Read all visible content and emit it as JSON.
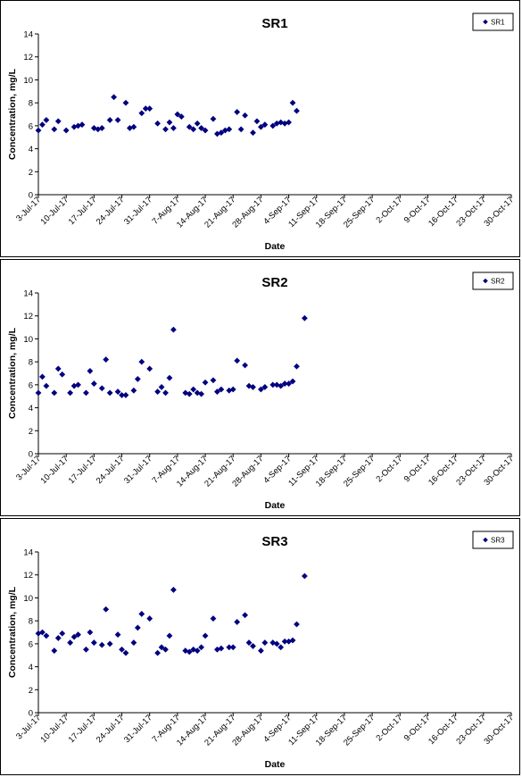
{
  "colors": {
    "marker": "#000080",
    "axis": "#000000"
  },
  "chart_data": [
    {
      "type": "scatter",
      "title": "SR1",
      "xlabel": "Date",
      "ylabel": "Concentration, mg/L",
      "ylim": [
        0,
        14
      ],
      "yticks": [
        "0",
        "2",
        "4",
        "6",
        "8",
        "10",
        "12",
        "14"
      ],
      "xlim": [
        "2017-07-03",
        "2017-10-30"
      ],
      "xticks": [
        "3-Jul-17",
        "10-Jul-17",
        "17-Jul-17",
        "24-Jul-17",
        "31-Jul-17",
        "7-Aug-17",
        "14-Aug-17",
        "21-Aug-17",
        "28-Aug-17",
        "4-Sep-17",
        "11-Sep-17",
        "18-Sep-17",
        "25-Sep-17",
        "2-Oct-17",
        "9-Oct-17",
        "16-Oct-17",
        "23-Oct-17",
        "30-Oct-17"
      ],
      "grid": false,
      "legend_position": "top-right",
      "series": [
        {
          "name": "SR1",
          "marker": "diamond",
          "points": [
            {
              "x": "2017-07-03",
              "y": 5.6
            },
            {
              "x": "2017-07-04",
              "y": 6.1
            },
            {
              "x": "2017-07-05",
              "y": 6.5
            },
            {
              "x": "2017-07-07",
              "y": 5.7
            },
            {
              "x": "2017-07-08",
              "y": 6.4
            },
            {
              "x": "2017-07-10",
              "y": 5.6
            },
            {
              "x": "2017-07-12",
              "y": 5.9
            },
            {
              "x": "2017-07-13",
              "y": 6.0
            },
            {
              "x": "2017-07-14",
              "y": 6.1
            },
            {
              "x": "2017-07-17",
              "y": 5.8
            },
            {
              "x": "2017-07-18",
              "y": 5.7
            },
            {
              "x": "2017-07-19",
              "y": 5.8
            },
            {
              "x": "2017-07-21",
              "y": 6.5
            },
            {
              "x": "2017-07-22",
              "y": 8.5
            },
            {
              "x": "2017-07-23",
              "y": 6.5
            },
            {
              "x": "2017-07-25",
              "y": 8.0
            },
            {
              "x": "2017-07-26",
              "y": 5.8
            },
            {
              "x": "2017-07-27",
              "y": 5.9
            },
            {
              "x": "2017-07-29",
              "y": 7.1
            },
            {
              "x": "2017-07-30",
              "y": 7.5
            },
            {
              "x": "2017-07-31",
              "y": 7.5
            },
            {
              "x": "2017-08-02",
              "y": 6.2
            },
            {
              "x": "2017-08-04",
              "y": 5.7
            },
            {
              "x": "2017-08-05",
              "y": 6.3
            },
            {
              "x": "2017-08-06",
              "y": 5.8
            },
            {
              "x": "2017-08-07",
              "y": 7.0
            },
            {
              "x": "2017-08-08",
              "y": 6.8
            },
            {
              "x": "2017-08-10",
              "y": 5.9
            },
            {
              "x": "2017-08-11",
              "y": 5.7
            },
            {
              "x": "2017-08-12",
              "y": 6.2
            },
            {
              "x": "2017-08-13",
              "y": 5.8
            },
            {
              "x": "2017-08-14",
              "y": 5.6
            },
            {
              "x": "2017-08-16",
              "y": 6.6
            },
            {
              "x": "2017-08-17",
              "y": 5.3
            },
            {
              "x": "2017-08-18",
              "y": 5.4
            },
            {
              "x": "2017-08-19",
              "y": 5.6
            },
            {
              "x": "2017-08-20",
              "y": 5.7
            },
            {
              "x": "2017-08-22",
              "y": 7.2
            },
            {
              "x": "2017-08-23",
              "y": 5.7
            },
            {
              "x": "2017-08-24",
              "y": 6.9
            },
            {
              "x": "2017-08-26",
              "y": 5.4
            },
            {
              "x": "2017-08-27",
              "y": 6.4
            },
            {
              "x": "2017-08-28",
              "y": 5.9
            },
            {
              "x": "2017-08-29",
              "y": 6.1
            },
            {
              "x": "2017-08-31",
              "y": 6.0
            },
            {
              "x": "2017-09-01",
              "y": 6.2
            },
            {
              "x": "2017-09-02",
              "y": 6.3
            },
            {
              "x": "2017-09-03",
              "y": 6.2
            },
            {
              "x": "2017-09-04",
              "y": 6.3
            },
            {
              "x": "2017-09-05",
              "y": 8.0
            },
            {
              "x": "2017-09-06",
              "y": 7.3
            }
          ]
        }
      ]
    },
    {
      "type": "scatter",
      "title": "SR2",
      "xlabel": "Date",
      "ylabel": "Concentration, mg/L",
      "ylim": [
        0,
        14
      ],
      "yticks": [
        "0",
        "2",
        "4",
        "6",
        "8",
        "10",
        "12",
        "14"
      ],
      "xlim": [
        "2017-07-03",
        "2017-10-30"
      ],
      "xticks": [
        "3-Jul-17",
        "10-Jul-17",
        "17-Jul-17",
        "24-Jul-17",
        "31-Jul-17",
        "7-Aug-17",
        "14-Aug-17",
        "21-Aug-17",
        "28-Aug-17",
        "4-Sep-17",
        "11-Sep-17",
        "18-Sep-17",
        "25-Sep-17",
        "2-Oct-17",
        "9-Oct-17",
        "16-Oct-17",
        "23-Oct-17",
        "30-Oct-17"
      ],
      "grid": false,
      "legend_position": "top-right",
      "series": [
        {
          "name": "SR2",
          "marker": "diamond",
          "points": [
            {
              "x": "2017-07-03",
              "y": 5.3
            },
            {
              "x": "2017-07-04",
              "y": 6.7
            },
            {
              "x": "2017-07-05",
              "y": 5.9
            },
            {
              "x": "2017-07-07",
              "y": 5.3
            },
            {
              "x": "2017-07-08",
              "y": 7.4
            },
            {
              "x": "2017-07-09",
              "y": 6.9
            },
            {
              "x": "2017-07-11",
              "y": 5.3
            },
            {
              "x": "2017-07-12",
              "y": 5.9
            },
            {
              "x": "2017-07-13",
              "y": 6.0
            },
            {
              "x": "2017-07-15",
              "y": 5.3
            },
            {
              "x": "2017-07-16",
              "y": 7.2
            },
            {
              "x": "2017-07-17",
              "y": 6.1
            },
            {
              "x": "2017-07-19",
              "y": 5.7
            },
            {
              "x": "2017-07-20",
              "y": 8.2
            },
            {
              "x": "2017-07-21",
              "y": 5.3
            },
            {
              "x": "2017-07-23",
              "y": 5.4
            },
            {
              "x": "2017-07-24",
              "y": 5.1
            },
            {
              "x": "2017-07-25",
              "y": 5.1
            },
            {
              "x": "2017-07-27",
              "y": 5.5
            },
            {
              "x": "2017-07-28",
              "y": 6.5
            },
            {
              "x": "2017-07-29",
              "y": 8.0
            },
            {
              "x": "2017-07-31",
              "y": 7.4
            },
            {
              "x": "2017-08-02",
              "y": 5.4
            },
            {
              "x": "2017-08-03",
              "y": 5.8
            },
            {
              "x": "2017-08-04",
              "y": 5.3
            },
            {
              "x": "2017-08-05",
              "y": 6.6
            },
            {
              "x": "2017-08-06",
              "y": 10.8
            },
            {
              "x": "2017-08-09",
              "y": 5.3
            },
            {
              "x": "2017-08-10",
              "y": 5.2
            },
            {
              "x": "2017-08-11",
              "y": 5.6
            },
            {
              "x": "2017-08-12",
              "y": 5.3
            },
            {
              "x": "2017-08-13",
              "y": 5.2
            },
            {
              "x": "2017-08-14",
              "y": 6.2
            },
            {
              "x": "2017-08-16",
              "y": 6.4
            },
            {
              "x": "2017-08-17",
              "y": 5.4
            },
            {
              "x": "2017-08-18",
              "y": 5.6
            },
            {
              "x": "2017-08-20",
              "y": 5.5
            },
            {
              "x": "2017-08-21",
              "y": 5.6
            },
            {
              "x": "2017-08-22",
              "y": 8.1
            },
            {
              "x": "2017-08-24",
              "y": 7.7
            },
            {
              "x": "2017-08-25",
              "y": 5.9
            },
            {
              "x": "2017-08-26",
              "y": 5.8
            },
            {
              "x": "2017-08-28",
              "y": 5.6
            },
            {
              "x": "2017-08-29",
              "y": 5.8
            },
            {
              "x": "2017-08-31",
              "y": 6.0
            },
            {
              "x": "2017-09-01",
              "y": 6.0
            },
            {
              "x": "2017-09-02",
              "y": 5.9
            },
            {
              "x": "2017-09-03",
              "y": 6.1
            },
            {
              "x": "2017-09-04",
              "y": 6.1
            },
            {
              "x": "2017-09-05",
              "y": 6.3
            },
            {
              "x": "2017-09-06",
              "y": 7.6
            },
            {
              "x": "2017-09-08",
              "y": 11.8
            }
          ]
        }
      ]
    },
    {
      "type": "scatter",
      "title": "SR3",
      "xlabel": "Date",
      "ylabel": "Concentration, mg/L",
      "ylim": [
        0,
        14
      ],
      "yticks": [
        "0",
        "2",
        "4",
        "6",
        "8",
        "10",
        "12",
        "14"
      ],
      "xlim": [
        "2017-07-03",
        "2017-10-30"
      ],
      "xticks": [
        "3-Jul-17",
        "10-Jul-17",
        "17-Jul-17",
        "24-Jul-17",
        "31-Jul-17",
        "7-Aug-17",
        "14-Aug-17",
        "21-Aug-17",
        "28-Aug-17",
        "4-Sep-17",
        "11-Sep-17",
        "18-Sep-17",
        "25-Sep-17",
        "2-Oct-17",
        "9-Oct-17",
        "16-Oct-17",
        "23-Oct-17",
        "30-Oct-17"
      ],
      "grid": false,
      "legend_position": "top-right",
      "series": [
        {
          "name": "SR3",
          "marker": "diamond",
          "points": [
            {
              "x": "2017-07-03",
              "y": 6.9
            },
            {
              "x": "2017-07-04",
              "y": 7.0
            },
            {
              "x": "2017-07-05",
              "y": 6.7
            },
            {
              "x": "2017-07-07",
              "y": 5.4
            },
            {
              "x": "2017-07-08",
              "y": 6.5
            },
            {
              "x": "2017-07-09",
              "y": 6.9
            },
            {
              "x": "2017-07-11",
              "y": 6.1
            },
            {
              "x": "2017-07-12",
              "y": 6.6
            },
            {
              "x": "2017-07-13",
              "y": 6.8
            },
            {
              "x": "2017-07-15",
              "y": 5.5
            },
            {
              "x": "2017-07-16",
              "y": 7.0
            },
            {
              "x": "2017-07-17",
              "y": 6.1
            },
            {
              "x": "2017-07-19",
              "y": 5.9
            },
            {
              "x": "2017-07-20",
              "y": 9.0
            },
            {
              "x": "2017-07-21",
              "y": 6.0
            },
            {
              "x": "2017-07-23",
              "y": 6.8
            },
            {
              "x": "2017-07-24",
              "y": 5.5
            },
            {
              "x": "2017-07-25",
              "y": 5.2
            },
            {
              "x": "2017-07-27",
              "y": 6.1
            },
            {
              "x": "2017-07-28",
              "y": 7.4
            },
            {
              "x": "2017-07-29",
              "y": 8.6
            },
            {
              "x": "2017-07-31",
              "y": 8.2
            },
            {
              "x": "2017-08-02",
              "y": 5.2
            },
            {
              "x": "2017-08-03",
              "y": 5.7
            },
            {
              "x": "2017-08-04",
              "y": 5.5
            },
            {
              "x": "2017-08-05",
              "y": 6.7
            },
            {
              "x": "2017-08-06",
              "y": 10.7
            },
            {
              "x": "2017-08-09",
              "y": 5.4
            },
            {
              "x": "2017-08-10",
              "y": 5.3
            },
            {
              "x": "2017-08-11",
              "y": 5.5
            },
            {
              "x": "2017-08-12",
              "y": 5.4
            },
            {
              "x": "2017-08-13",
              "y": 5.7
            },
            {
              "x": "2017-08-14",
              "y": 6.7
            },
            {
              "x": "2017-08-16",
              "y": 8.2
            },
            {
              "x": "2017-08-17",
              "y": 5.5
            },
            {
              "x": "2017-08-18",
              "y": 5.6
            },
            {
              "x": "2017-08-20",
              "y": 5.7
            },
            {
              "x": "2017-08-21",
              "y": 5.7
            },
            {
              "x": "2017-08-22",
              "y": 7.9
            },
            {
              "x": "2017-08-24",
              "y": 8.5
            },
            {
              "x": "2017-08-25",
              "y": 6.1
            },
            {
              "x": "2017-08-26",
              "y": 5.8
            },
            {
              "x": "2017-08-28",
              "y": 5.4
            },
            {
              "x": "2017-08-29",
              "y": 6.1
            },
            {
              "x": "2017-08-31",
              "y": 6.1
            },
            {
              "x": "2017-09-01",
              "y": 6.0
            },
            {
              "x": "2017-09-02",
              "y": 5.7
            },
            {
              "x": "2017-09-03",
              "y": 6.2
            },
            {
              "x": "2017-09-04",
              "y": 6.2
            },
            {
              "x": "2017-09-05",
              "y": 6.3
            },
            {
              "x": "2017-09-06",
              "y": 7.7
            },
            {
              "x": "2017-09-08",
              "y": 11.9
            }
          ]
        }
      ]
    }
  ]
}
